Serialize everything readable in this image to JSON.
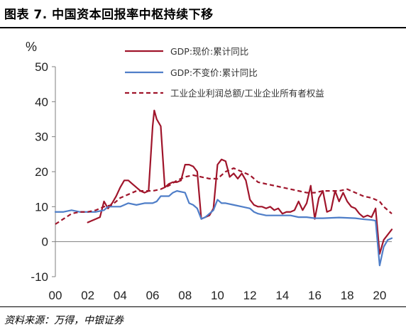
{
  "figure": {
    "title": "图表 7. 中国资本回报率中枢持续下移",
    "source": "资料来源：万得，中银证券"
  },
  "chart_data": {
    "type": "line",
    "title": "图表 7. 中国资本回报率中枢持续下移",
    "ylabel": "%",
    "xlim": [
      2000,
      2020.75
    ],
    "ylim": [
      -10,
      50
    ],
    "yticks": [
      -10,
      0,
      10,
      20,
      30,
      40,
      50
    ],
    "ytick_labels": [
      "-10",
      "0",
      "10",
      "20",
      "30",
      "40",
      "50"
    ],
    "xticks": [
      2000,
      2002,
      2004,
      2006,
      2008,
      2010,
      2012,
      2014,
      2016,
      2018,
      2020
    ],
    "xtick_labels": [
      "00",
      "02",
      "04",
      "06",
      "08",
      "10",
      "12",
      "14",
      "16",
      "18",
      "20"
    ],
    "grid": false,
    "legend_position": "top",
    "series": [
      {
        "name": "GDP:现价:累计同比",
        "color": "#a0152b",
        "style": "solid",
        "points": [
          [
            2002.0,
            5.5
          ],
          [
            2002.5,
            6.5
          ],
          [
            2002.75,
            7.0
          ],
          [
            2003.0,
            11.5
          ],
          [
            2003.25,
            9.5
          ],
          [
            2003.5,
            11.0
          ],
          [
            2003.75,
            13.0
          ],
          [
            2004.0,
            15.5
          ],
          [
            2004.25,
            17.5
          ],
          [
            2004.5,
            17.5
          ],
          [
            2004.75,
            16.5
          ],
          [
            2005.0,
            15.5
          ],
          [
            2005.25,
            14.5
          ],
          [
            2005.5,
            14.0
          ],
          [
            2005.75,
            14.5
          ],
          [
            2006.0,
            33.0
          ],
          [
            2006.1,
            37.5
          ],
          [
            2006.25,
            35.0
          ],
          [
            2006.5,
            33.0
          ],
          [
            2006.75,
            15.5
          ],
          [
            2007.0,
            16.5
          ],
          [
            2007.25,
            17.0
          ],
          [
            2007.5,
            17.0
          ],
          [
            2007.75,
            17.5
          ],
          [
            2008.0,
            22.0
          ],
          [
            2008.25,
            22.0
          ],
          [
            2008.5,
            21.5
          ],
          [
            2008.75,
            20.0
          ],
          [
            2009.0,
            6.5
          ],
          [
            2009.25,
            7.0
          ],
          [
            2009.5,
            7.5
          ],
          [
            2009.75,
            9.5
          ],
          [
            2010.0,
            22.0
          ],
          [
            2010.25,
            23.5
          ],
          [
            2010.5,
            23.0
          ],
          [
            2010.75,
            18.5
          ],
          [
            2011.0,
            19.5
          ],
          [
            2011.25,
            18.0
          ],
          [
            2011.5,
            19.5
          ],
          [
            2011.75,
            17.5
          ],
          [
            2012.0,
            12.0
          ],
          [
            2012.25,
            10.5
          ],
          [
            2012.5,
            10.0
          ],
          [
            2012.75,
            10.0
          ],
          [
            2013.0,
            9.5
          ],
          [
            2013.25,
            10.0
          ],
          [
            2013.5,
            9.0
          ],
          [
            2013.75,
            9.5
          ],
          [
            2014.0,
            8.0
          ],
          [
            2014.25,
            8.5
          ],
          [
            2014.5,
            8.5
          ],
          [
            2014.75,
            9.0
          ],
          [
            2015.0,
            11.5
          ],
          [
            2015.25,
            9.0
          ],
          [
            2015.5,
            11.0
          ],
          [
            2015.75,
            16.0
          ],
          [
            2016.0,
            6.5
          ],
          [
            2016.25,
            12.5
          ],
          [
            2016.5,
            14.5
          ],
          [
            2016.75,
            8.5
          ],
          [
            2017.0,
            9.0
          ],
          [
            2017.25,
            14.5
          ],
          [
            2017.5,
            11.5
          ],
          [
            2017.75,
            14.0
          ],
          [
            2018.0,
            11.5
          ],
          [
            2018.25,
            10.0
          ],
          [
            2018.5,
            9.5
          ],
          [
            2018.75,
            8.0
          ],
          [
            2019.0,
            7.0
          ],
          [
            2019.25,
            7.5
          ],
          [
            2019.5,
            7.0
          ],
          [
            2019.75,
            9.5
          ],
          [
            2020.0,
            -3.5
          ],
          [
            2020.25,
            0.5
          ],
          [
            2020.5,
            2.0
          ],
          [
            2020.75,
            3.5
          ]
        ]
      },
      {
        "name": "GDP:不变价:累计同比",
        "color": "#4f7ec8",
        "style": "solid",
        "points": [
          [
            2000.0,
            8.5
          ],
          [
            2000.5,
            8.5
          ],
          [
            2001.0,
            9.0
          ],
          [
            2001.5,
            8.5
          ],
          [
            2002.0,
            8.5
          ],
          [
            2002.5,
            8.5
          ],
          [
            2003.0,
            9.0
          ],
          [
            2003.25,
            10.0
          ],
          [
            2003.5,
            10.0
          ],
          [
            2003.75,
            10.0
          ],
          [
            2004.0,
            10.0
          ],
          [
            2004.5,
            11.0
          ],
          [
            2005.0,
            10.5
          ],
          [
            2005.5,
            11.0
          ],
          [
            2006.0,
            11.0
          ],
          [
            2006.25,
            11.5
          ],
          [
            2006.5,
            13.0
          ],
          [
            2007.0,
            13.0
          ],
          [
            2007.25,
            14.0
          ],
          [
            2007.5,
            14.5
          ],
          [
            2008.0,
            14.0
          ],
          [
            2008.25,
            11.0
          ],
          [
            2008.5,
            10.5
          ],
          [
            2008.75,
            9.5
          ],
          [
            2009.0,
            6.5
          ],
          [
            2009.25,
            7.0
          ],
          [
            2009.5,
            8.0
          ],
          [
            2009.75,
            9.0
          ],
          [
            2010.0,
            12.0
          ],
          [
            2010.25,
            11.0
          ],
          [
            2010.5,
            11.0
          ],
          [
            2011.0,
            10.5
          ],
          [
            2011.5,
            10.0
          ],
          [
            2012.0,
            9.5
          ],
          [
            2012.25,
            8.5
          ],
          [
            2012.5,
            8.0
          ],
          [
            2013.0,
            7.5
          ],
          [
            2013.5,
            7.5
          ],
          [
            2014.0,
            7.5
          ],
          [
            2014.5,
            7.5
          ],
          [
            2015.0,
            7.0
          ],
          [
            2015.5,
            7.0
          ],
          [
            2016.0,
            6.7
          ],
          [
            2016.5,
            6.7
          ],
          [
            2017.0,
            6.8
          ],
          [
            2017.5,
            6.9
          ],
          [
            2018.0,
            6.8
          ],
          [
            2018.5,
            6.7
          ],
          [
            2019.0,
            6.4
          ],
          [
            2019.5,
            6.2
          ],
          [
            2019.75,
            6.0
          ],
          [
            2020.0,
            -6.8
          ],
          [
            2020.25,
            -1.5
          ],
          [
            2020.5,
            0.5
          ],
          [
            2020.75,
            1.0
          ]
        ]
      },
      {
        "name": "工业企业利润总额/工业企业所有者权益",
        "color": "#a0152b",
        "style": "dashed",
        "points": [
          [
            2000.0,
            5.0
          ],
          [
            2000.5,
            6.5
          ],
          [
            2001.0,
            8.0
          ],
          [
            2001.5,
            8.5
          ],
          [
            2002.0,
            8.5
          ],
          [
            2002.5,
            9.0
          ],
          [
            2003.0,
            10.0
          ],
          [
            2003.5,
            10.5
          ],
          [
            2004.0,
            12.5
          ],
          [
            2004.5,
            13.5
          ],
          [
            2005.0,
            14.5
          ],
          [
            2005.5,
            14.5
          ],
          [
            2006.0,
            14.5
          ],
          [
            2006.5,
            15.0
          ],
          [
            2007.0,
            16.0
          ],
          [
            2007.5,
            17.5
          ],
          [
            2008.0,
            18.5
          ],
          [
            2008.5,
            19.0
          ],
          [
            2009.0,
            18.5
          ],
          [
            2009.5,
            18.0
          ],
          [
            2010.0,
            18.0
          ],
          [
            2010.5,
            20.0
          ],
          [
            2011.0,
            21.0
          ],
          [
            2011.5,
            20.0
          ],
          [
            2012.0,
            19.0
          ],
          [
            2012.5,
            17.0
          ],
          [
            2013.0,
            16.5
          ],
          [
            2013.5,
            16.0
          ],
          [
            2014.0,
            15.5
          ],
          [
            2014.5,
            15.0
          ],
          [
            2015.0,
            14.5
          ],
          [
            2015.5,
            14.0
          ],
          [
            2016.0,
            14.0
          ],
          [
            2016.5,
            14.5
          ],
          [
            2017.0,
            14.5
          ],
          [
            2017.5,
            14.5
          ],
          [
            2018.0,
            15.0
          ],
          [
            2018.5,
            14.0
          ],
          [
            2019.0,
            13.0
          ],
          [
            2019.5,
            12.5
          ],
          [
            2020.0,
            11.5
          ],
          [
            2020.25,
            10.0
          ],
          [
            2020.5,
            9.0
          ],
          [
            2020.75,
            8.0
          ]
        ]
      }
    ]
  }
}
